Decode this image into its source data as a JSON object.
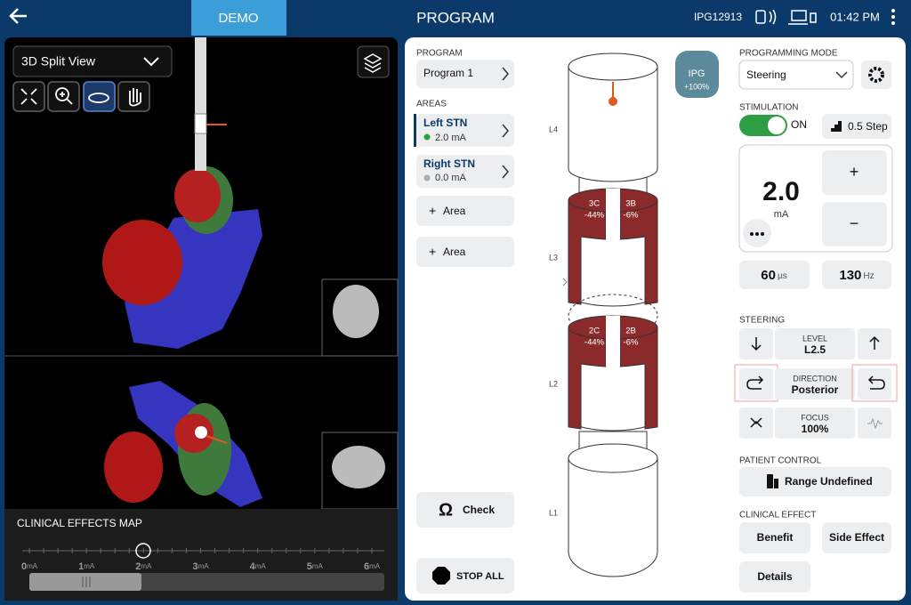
{
  "header": {
    "demo": "DEMO",
    "title": "PROGRAM",
    "device": "IPG12913",
    "time": "01:42 PM"
  },
  "view_panel": {
    "view_mode": "3D Split View",
    "effects_map": {
      "title": "CLINICAL EFFECTS MAP",
      "scale": [
        {
          "value": 0,
          "unit": "mA"
        },
        {
          "value": 1,
          "unit": "mA"
        },
        {
          "value": 2,
          "unit": "mA"
        },
        {
          "value": 3,
          "unit": "mA"
        },
        {
          "value": 4,
          "unit": "mA"
        },
        {
          "value": 5,
          "unit": "mA"
        },
        {
          "value": 6,
          "unit": "mA"
        }
      ]
    }
  },
  "program_column": {
    "program_label": "PROGRAM",
    "program": "Program 1",
    "areas_label": "AREAS",
    "areas": [
      {
        "name": "Left STN",
        "amplitude": "2.0 mA"
      },
      {
        "name": "Right STN",
        "amplitude": "0.0 mA"
      }
    ],
    "add_area": [
      "Area",
      "Area"
    ],
    "check": "Check",
    "stop_all": "STOP ALL"
  },
  "lead": {
    "levels": [
      "L4",
      "L3",
      "L2",
      "L1"
    ],
    "segments": [
      {
        "name": "3C",
        "percent": "-44%"
      },
      {
        "name": "3B",
        "percent": "-6%"
      },
      {
        "name": "2C",
        "percent": "-44%"
      },
      {
        "name": "2B",
        "percent": "-6%"
      }
    ],
    "ipg": {
      "label": "IPG",
      "percent": "+100%"
    }
  },
  "settings": {
    "mode_label": "PROGRAMMING MODE",
    "mode": "Steering",
    "stimulation_label": "STIMULATION",
    "stimulation_state": "ON",
    "step": "0.5 Step",
    "amplitude": {
      "value": "2.0",
      "unit": "mA",
      "increase": "+",
      "decrease": "−"
    },
    "pulse_width": {
      "value": 60,
      "unit": "µs"
    },
    "rate": {
      "value": 130,
      "unit": "Hz"
    },
    "steering_label": "STEERING",
    "steering": {
      "level": {
        "label": "LEVEL",
        "value": "L2.5"
      },
      "direction": {
        "label": "DIRECTION",
        "value": "Posterior"
      },
      "focus": {
        "label": "FOCUS",
        "value": "100%"
      }
    },
    "patient_control_label": "PATIENT CONTROL",
    "patient_control": "Range Undefined",
    "clinical_effect_label": "CLINICAL EFFECT",
    "clinical_effects": [
      "Benefit",
      "Side Effect",
      "Details"
    ]
  }
}
